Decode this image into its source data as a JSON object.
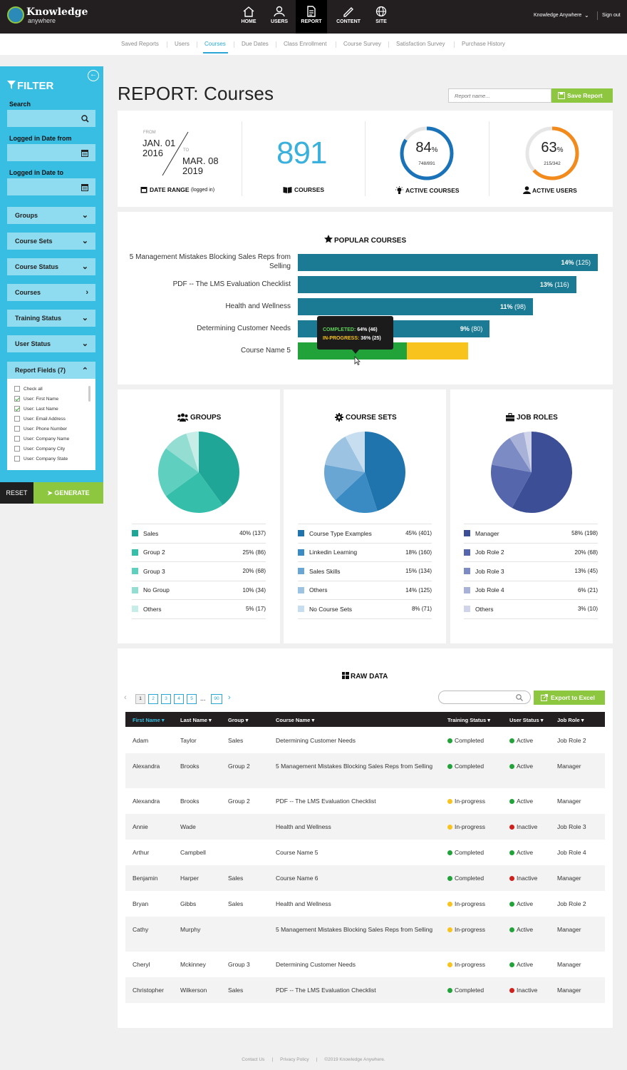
{
  "brand": {
    "name": "Knowledge",
    "sub": "anywhere"
  },
  "nav": [
    {
      "label": "HOME",
      "icon": "home-icon"
    },
    {
      "label": "USERS",
      "icon": "user-icon"
    },
    {
      "label": "REPORT",
      "icon": "report-icon"
    },
    {
      "label": "CONTENT",
      "icon": "pencil-icon"
    },
    {
      "label": "SITE",
      "icon": "globe-icon"
    }
  ],
  "account": {
    "name": "Knowledge Anywhere",
    "signout": "Sign out"
  },
  "subnav": [
    "Saved Reports",
    "Users",
    "Courses",
    "Due Dates",
    "Class Enrollment",
    "Course Survey",
    "Satisfaction Survey",
    "Purchase History"
  ],
  "filter": {
    "title": "FILTER",
    "search_label": "Search",
    "date_from_label": "Logged in Date from",
    "date_to_label": "Logged in Date to",
    "dropdowns": [
      "Groups",
      "Course Sets",
      "Course Status",
      "Courses",
      "Training Status",
      "User Status"
    ],
    "report_fields_label": "Report Fields (7)",
    "fields": [
      {
        "label": "Check all",
        "checked": false
      },
      {
        "label": "User: First Name",
        "checked": true
      },
      {
        "label": "User: Last Name",
        "checked": true
      },
      {
        "label": "User: Email Address",
        "checked": false
      },
      {
        "label": "User: Phone Number",
        "checked": false
      },
      {
        "label": "User: Company Name",
        "checked": false
      },
      {
        "label": "User: Company City",
        "checked": false
      },
      {
        "label": "User: Company State",
        "checked": false
      }
    ],
    "reset": "RESET",
    "generate": "GENERATE"
  },
  "header": {
    "title": "REPORT: Courses",
    "report_placeholder": "Report name...",
    "save": "Save Report"
  },
  "stats": {
    "from_label": "FROM",
    "from_date": "JAN. 01",
    "from_year": "2016",
    "to_label": "TO",
    "to_date": "MAR. 08",
    "to_year": "2019",
    "date_range_label": "DATE RANGE",
    "date_range_note": "(logged in)",
    "courses_count": "891",
    "courses_label": "COURSES",
    "active_courses_pct": "84",
    "active_courses_sub": "748/891",
    "active_courses_label": "ACTIVE COURSES",
    "active_courses_fraction": 0.84,
    "active_users_pct": "63",
    "active_users_sub": "215/342",
    "active_users_label": "ACTIVE USERS",
    "active_users_fraction": 0.63,
    "pct_sign": "%"
  },
  "popular": {
    "title": "POPULAR COURSES",
    "items": [
      {
        "label": "5 Management Mistakes Blocking Sales Reps from Selling",
        "pct": "14%",
        "count": "(125)",
        "value": 125
      },
      {
        "label": "PDF -- The LMS Evaluation Checklist",
        "pct": "13%",
        "count": "(116)",
        "value": 116
      },
      {
        "label": "Health and Wellness",
        "pct": "11%",
        "count": "(98)",
        "value": 98
      },
      {
        "label": "Determining Customer Needs",
        "pct": "9%",
        "count": "(80)",
        "value": 80
      },
      {
        "label": "Course Name 5",
        "pct": "",
        "count": "",
        "value": 71,
        "completed_share": 0.64,
        "inprogress_share": 0.36
      }
    ],
    "tooltip": {
      "completed_label": "COMPLETED:",
      "completed_val": "64% (46)",
      "inprogress_label": "IN-PROGRESS:",
      "inprogress_val": "36% (25)"
    }
  },
  "pies": [
    {
      "title": "GROUPS",
      "icon": "users-group-icon",
      "rows": [
        {
          "name": "Sales",
          "val": "40% (137)",
          "share": 40,
          "color": "#1fa697"
        },
        {
          "name": "Group 2",
          "val": "25% (86)",
          "share": 25,
          "color": "#35bea9"
        },
        {
          "name": "Group 3",
          "val": "20% (68)",
          "share": 20,
          "color": "#5fd0bf"
        },
        {
          "name": "No Group",
          "val": "10% (34)",
          "share": 10,
          "color": "#93ddd2"
        },
        {
          "name": "Others",
          "val": "5% (17)",
          "share": 5,
          "color": "#c6ede7"
        }
      ]
    },
    {
      "title": "COURSE SETS",
      "icon": "gear-icon",
      "rows": [
        {
          "name": "Course Type Examples",
          "val": "45% (401)",
          "share": 45,
          "color": "#1f74ad"
        },
        {
          "name": "Linkedin Learning",
          "val": "18% (160)",
          "share": 18,
          "color": "#3a8ac4"
        },
        {
          "name": "Sales Skills",
          "val": "15% (134)",
          "share": 15,
          "color": "#6aa6d3"
        },
        {
          "name": "Others",
          "val": "14% (125)",
          "share": 14,
          "color": "#9cc4e2"
        },
        {
          "name": "No Course Sets",
          "val": "8% (71)",
          "share": 8,
          "color": "#c7def0"
        }
      ]
    },
    {
      "title": "JOB ROLES",
      "icon": "briefcase-icon",
      "rows": [
        {
          "name": "Manager",
          "val": "58% (198)",
          "share": 58,
          "color": "#3c4f96"
        },
        {
          "name": "Job Role 2",
          "val": "20% (68)",
          "share": 20,
          "color": "#5566ad"
        },
        {
          "name": "Job Role 3",
          "val": "13% (45)",
          "share": 13,
          "color": "#7d8bc4"
        },
        {
          "name": "Job Role 4",
          "val": "6% (21)",
          "share": 6,
          "color": "#a8b1d8"
        },
        {
          "name": "Others",
          "val": "3% (10)",
          "share": 3,
          "color": "#cfd4ea"
        }
      ]
    }
  ],
  "raw": {
    "title": "RAW DATA",
    "pages": [
      "1",
      "2",
      "3",
      "4",
      "5",
      "...",
      "90"
    ],
    "export": "Export to Excel",
    "columns": [
      "First Name",
      "Last Name",
      "Group",
      "Course Name",
      "Training Status",
      "User Status",
      "Job Role"
    ],
    "rows": [
      [
        "Adam",
        "Taylor",
        "Sales",
        "Determining Customer Needs",
        "Completed",
        "Active",
        "Job Role 2"
      ],
      [
        "Alexandra",
        "Brooks",
        "Group 2",
        "5 Management Mistakes Blocking Sales Reps from Selling",
        "Completed",
        "Active",
        "Manager"
      ],
      [
        "Alexandra",
        "Brooks",
        "Group 2",
        "PDF -- The LMS Evaluation Checklist",
        "In-progress",
        "Active",
        "Manager"
      ],
      [
        "Annie",
        "Wade",
        "",
        "Health and Wellness",
        "In-progress",
        "Inactive",
        "Job Role 3"
      ],
      [
        "Arthur",
        "Campbell",
        "",
        "Course Name 5",
        "Completed",
        "Active",
        "Job Role 4"
      ],
      [
        "Benjamin",
        "Harper",
        "Sales",
        "Course Name 6",
        "Completed",
        "Inactive",
        "Manager"
      ],
      [
        "Bryan",
        "Gibbs",
        "Sales",
        "Health and Wellness",
        "In-progress",
        "Active",
        "Job Role 2"
      ],
      [
        "Cathy",
        "Murphy",
        "",
        "5 Management Mistakes Blocking Sales Reps from Selling",
        "In-progress",
        "Active",
        "Manager"
      ],
      [
        "Cheryl",
        "Mckinney",
        "Group 3",
        "Determining Customer Needs",
        "In-progress",
        "Active",
        "Manager"
      ],
      [
        "Christopher",
        "Wilkerson",
        "Sales",
        "PDF -- The LMS Evaluation Checklist",
        "Completed",
        "Inactive",
        "Manager"
      ]
    ]
  },
  "footer": [
    "Contact Us",
    "|",
    "Privacy Policy",
    "|",
    "©2019 Knowledge Anywhere."
  ],
  "colors": {
    "accent": "#37bee2",
    "green": "#8dc63f",
    "teal_bar": "#1b7b94",
    "completed": "#22a33a",
    "inprogress": "#f8c31c",
    "inactive": "#d0201c",
    "ring_blue": "#1a73b8",
    "ring_orange": "#f28a1c"
  }
}
